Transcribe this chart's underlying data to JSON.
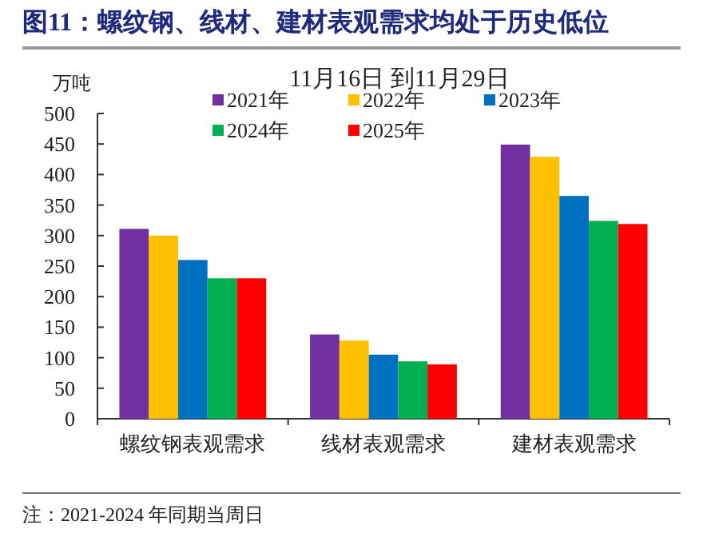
{
  "chart_data": {
    "type": "bar",
    "title": "图11：螺纹钢、线材、建材表观需求均处于历史低位",
    "subtitle": "11月16日 到11月29日",
    "ylabel": "万吨",
    "categories": [
      "螺纹钢表观需求",
      "线材表观需求",
      "建材表观需求"
    ],
    "series": [
      {
        "name": "2021年",
        "color": "#7030a0",
        "values": [
          311,
          138,
          449
        ]
      },
      {
        "name": "2022年",
        "color": "#ffc000",
        "values": [
          300,
          128,
          429
        ]
      },
      {
        "name": "2023年",
        "color": "#0070c0",
        "values": [
          260,
          105,
          365
        ]
      },
      {
        "name": "2024年",
        "color": "#00b050",
        "values": [
          230,
          94,
          324
        ]
      },
      {
        "name": "2025年",
        "color": "#ff0000",
        "values": [
          230,
          89,
          319
        ]
      }
    ],
    "ylim": [
      0,
      500
    ],
    "yticks": [
      0,
      50,
      100,
      150,
      200,
      250,
      300,
      350,
      400,
      450,
      500
    ],
    "grid": false,
    "legend": "top",
    "annotations": [
      "注：2021-2024 年同期当周日"
    ]
  }
}
